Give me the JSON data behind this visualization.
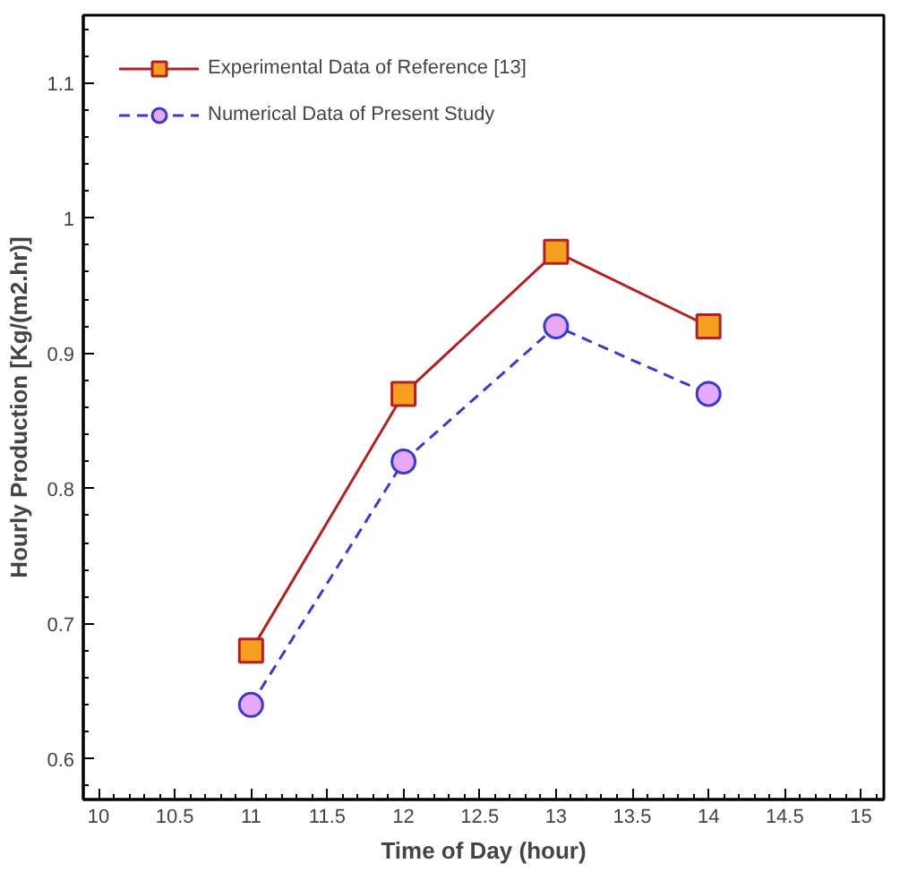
{
  "chart_data": {
    "type": "line",
    "xlabel": "Time of Day (hour)",
    "ylabel": "Hourly Production [Kg/(m2.hr)]",
    "x": [
      11,
      12,
      13,
      14
    ],
    "series": [
      {
        "name": "Experimental Data of Reference [13]",
        "color": "#b22222",
        "marker": "square",
        "line_style": "solid",
        "values": [
          0.68,
          0.87,
          0.975,
          0.92
        ]
      },
      {
        "name": "Numerical Data of Present Study",
        "color": "#3a3acc",
        "marker": "circle",
        "line_style": "dashed",
        "values": [
          0.64,
          0.82,
          0.92,
          0.87
        ]
      }
    ],
    "xlim": [
      9.9,
      15.15
    ],
    "xticks": [
      10,
      10.5,
      11,
      11.5,
      12,
      12.5,
      13,
      13.5,
      14,
      14.5,
      15
    ],
    "ylim": [
      0.57,
      1.15
    ],
    "yticks": [
      0.6,
      0.7,
      0.8,
      0.9,
      {
        "value": 1.0,
        "label": "1"
      },
      1.1
    ],
    "grid": false,
    "legend": "top left"
  }
}
